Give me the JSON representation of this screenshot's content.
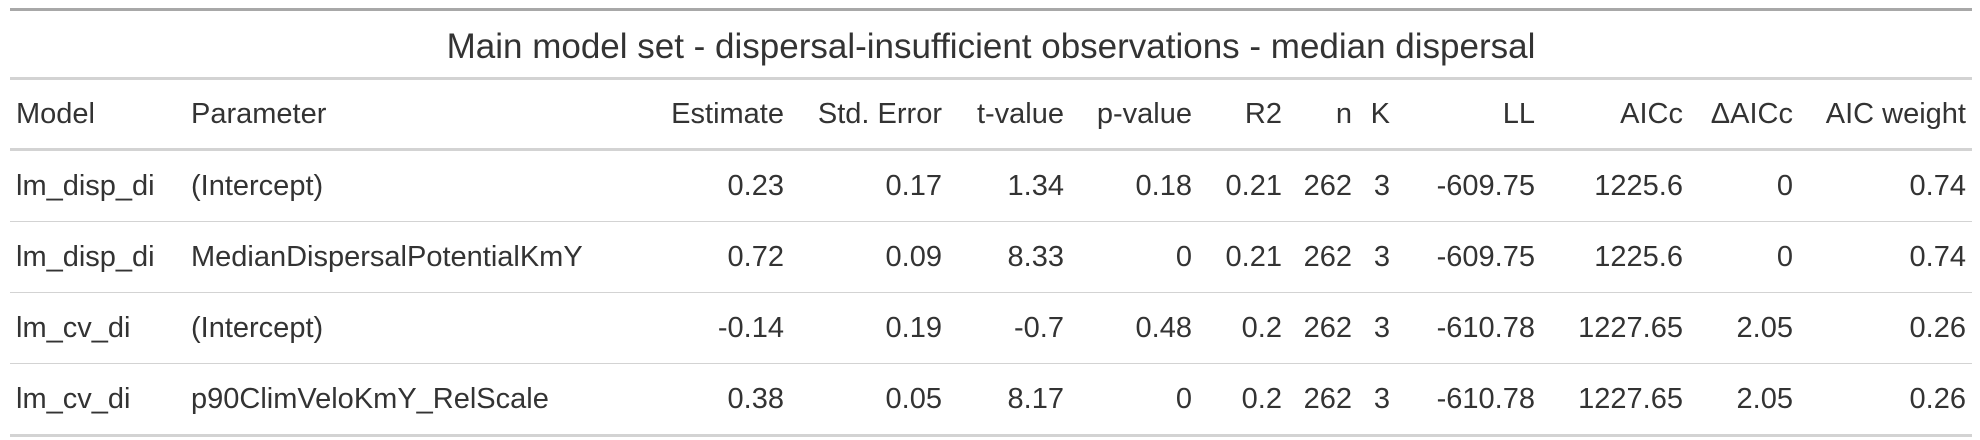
{
  "table": {
    "title": "Main model set - dispersal-insufficient observations - median dispersal",
    "columns": [
      "Model",
      "Parameter",
      "Estimate",
      "Std. Error",
      "t-value",
      "p-value",
      "R2",
      "n",
      "K",
      "LL",
      "AICc",
      "ΔAICc",
      "AIC weight"
    ],
    "rows": [
      [
        "lm_disp_di",
        "(Intercept)",
        "0.23",
        "0.17",
        "1.34",
        "0.18",
        "0.21",
        "262",
        "3",
        "-609.75",
        "1225.6",
        "0",
        "0.74"
      ],
      [
        "lm_disp_di",
        "MedianDispersalPotentialKmY",
        "0.72",
        "0.09",
        "8.33",
        "0",
        "0.21",
        "262",
        "3",
        "-609.75",
        "1225.6",
        "0",
        "0.74"
      ],
      [
        "lm_cv_di",
        "(Intercept)",
        "-0.14",
        "0.19",
        "-0.7",
        "0.48",
        "0.2",
        "262",
        "3",
        "-610.78",
        "1227.65",
        "2.05",
        "0.26"
      ],
      [
        "lm_cv_di",
        "p90ClimVeloKmY_RelScale",
        "0.38",
        "0.05",
        "8.17",
        "0",
        "0.2",
        "262",
        "3",
        "-610.78",
        "1227.65",
        "2.05",
        "0.26"
      ]
    ]
  }
}
